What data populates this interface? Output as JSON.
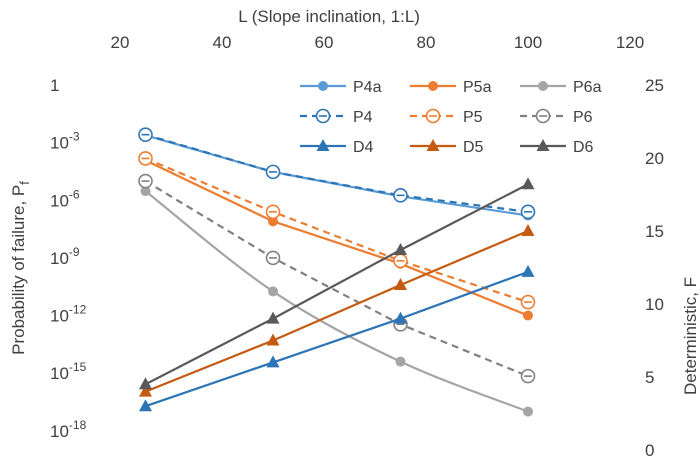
{
  "chart_data": {
    "type": "line",
    "x_axis": {
      "title": "L (Slope inclination, 1:L)",
      "position": "top",
      "range": [
        20,
        120
      ],
      "ticks": [
        20,
        40,
        60,
        80,
        100,
        120
      ],
      "tick_labels": [
        "20",
        "40",
        "60",
        "80",
        "100",
        "120"
      ]
    },
    "y_left_axis": {
      "title_main": "Probability of failure,  P",
      "title_sub": "f",
      "scale": "log",
      "range": [
        1e-19,
        1
      ],
      "ticks": [
        {
          "value": 1,
          "base": "1",
          "exp": ""
        },
        {
          "value": 0.001,
          "base": "10",
          "exp": "-3"
        },
        {
          "value": 1e-06,
          "base": "10",
          "exp": "-6"
        },
        {
          "value": 1e-09,
          "base": "10",
          "exp": "-9"
        },
        {
          "value": 1e-12,
          "base": "10",
          "exp": "-12"
        },
        {
          "value": 1e-15,
          "base": "10",
          "exp": "-15"
        },
        {
          "value": 1e-18,
          "base": "10",
          "exp": "-18"
        }
      ]
    },
    "y_right_axis": {
      "title": "Deterministic, F",
      "range": [
        0,
        25
      ],
      "ticks": [
        0,
        5,
        10,
        15,
        20,
        25
      ],
      "tick_labels": [
        "0",
        "5",
        "10",
        "15",
        "20",
        "25"
      ]
    },
    "x": [
      25,
      50,
      75,
      100
    ],
    "series": [
      {
        "name": "P4a",
        "axis": "left",
        "color": "#5b9bd5",
        "dash": "",
        "marker": "dot",
        "smooth": false,
        "values": [
          0.0024,
          3e-05,
          1.6e-06,
          1.6e-07
        ]
      },
      {
        "name": "P5a",
        "axis": "left",
        "color": "#ed7d31",
        "dash": "",
        "marker": "dot",
        "smooth": false,
        "values": [
          0.00012,
          8e-08,
          5e-10,
          1e-12
        ]
      },
      {
        "name": "P6a",
        "axis": "left",
        "color": "#a5a5a5",
        "dash": "",
        "marker": "dot",
        "smooth": true,
        "values": [
          3e-06,
          1.8e-11,
          4e-15,
          1e-17
        ]
      },
      {
        "name": "P4",
        "axis": "left",
        "color": "#2e75b6",
        "dash": "7,5",
        "marker": "ring-line",
        "smooth": false,
        "values": [
          0.0026,
          3e-05,
          1.8e-06,
          2.5e-07
        ]
      },
      {
        "name": "P5",
        "axis": "left",
        "color": "#ed7d31",
        "dash": "7,5",
        "marker": "ring-line",
        "smooth": false,
        "values": [
          0.00015,
          2.5e-07,
          7e-10,
          5e-12
        ]
      },
      {
        "name": "P6",
        "axis": "left",
        "color": "#808080",
        "dash": "7,5",
        "marker": "ring-line",
        "smooth": false,
        "values": [
          1e-05,
          1e-09,
          3.5e-13,
          7e-16
        ]
      },
      {
        "name": "D4",
        "axis": "right",
        "color": "#2e75b6",
        "dash": "",
        "marker": "triangle",
        "smooth": false,
        "values": [
          3.0,
          6.0,
          9.0,
          12.2
        ]
      },
      {
        "name": "D5",
        "axis": "right",
        "color": "#c55a11",
        "dash": "",
        "marker": "triangle",
        "smooth": false,
        "values": [
          4.0,
          7.5,
          11.3,
          15.0
        ]
      },
      {
        "name": "D6",
        "axis": "right",
        "color": "#595959",
        "dash": "",
        "marker": "triangle",
        "smooth": false,
        "values": [
          4.5,
          9.0,
          13.7,
          18.2
        ]
      }
    ],
    "legend": {
      "position": "top-right",
      "columns": 3
    },
    "grid": false
  }
}
